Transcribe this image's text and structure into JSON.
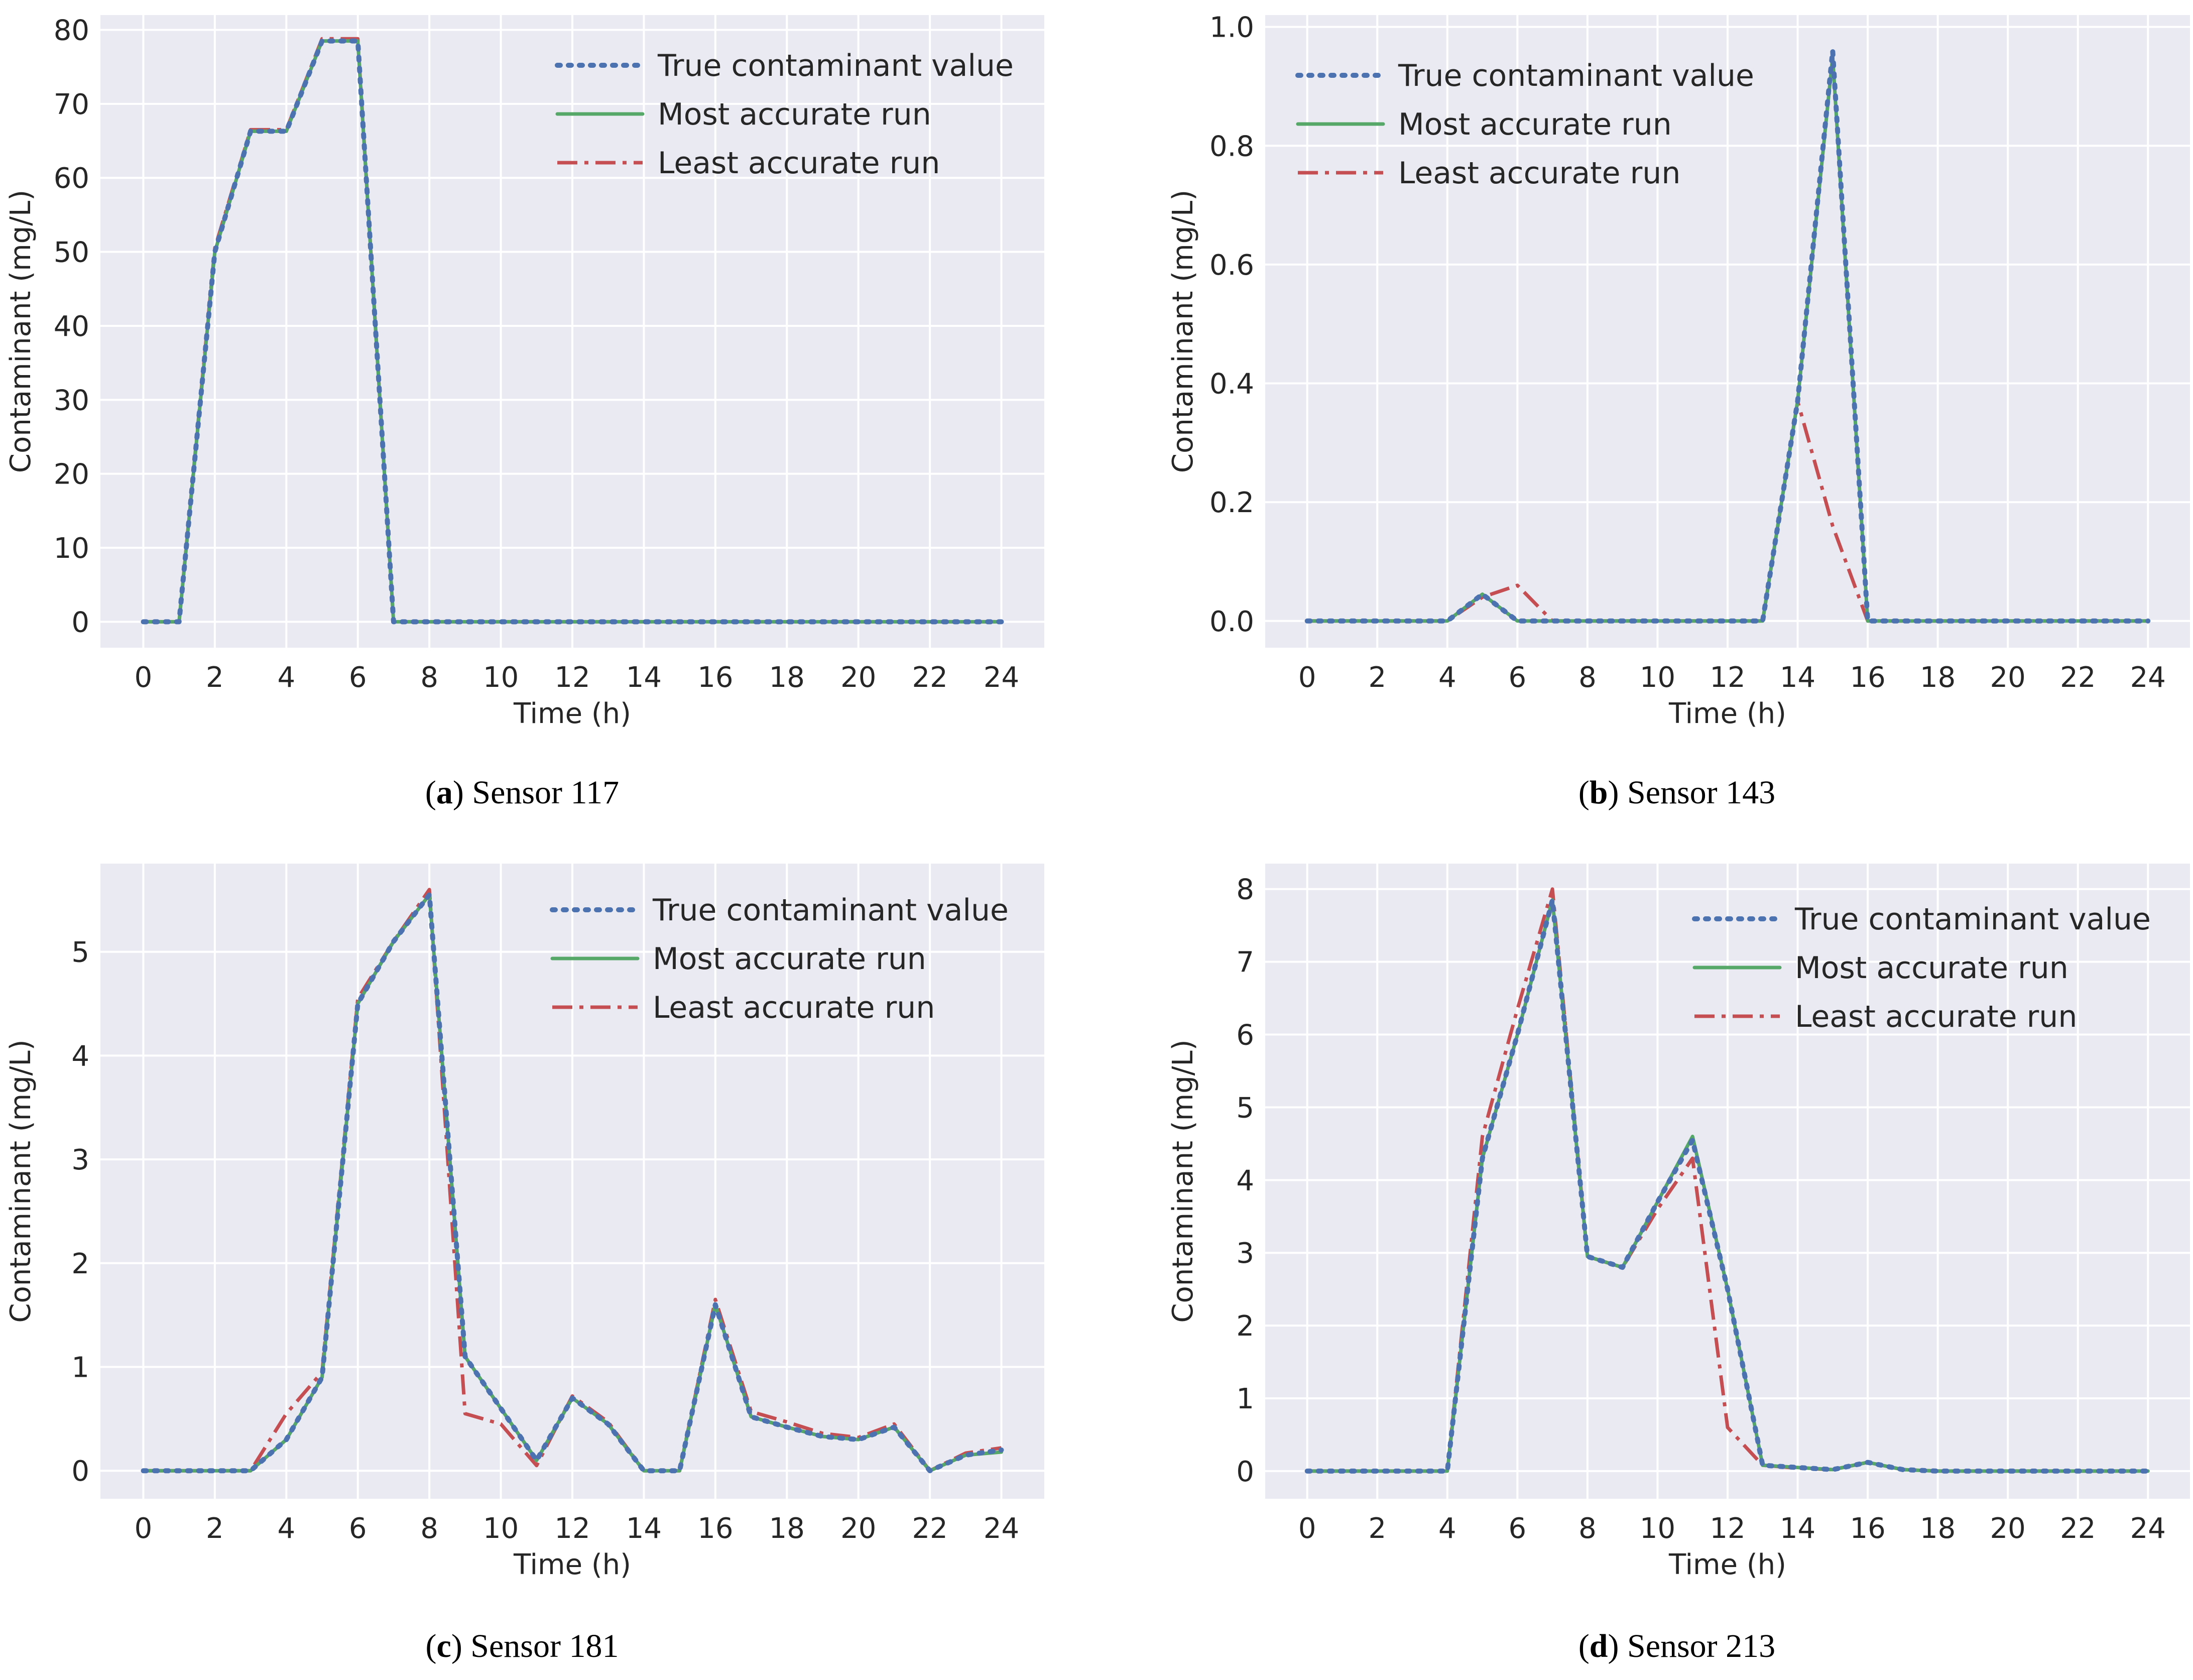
{
  "colors": {
    "true": "#4c72b0",
    "most": "#55a868",
    "least": "#c44e52"
  },
  "chart_data": [
    {
      "type": "line",
      "caption_letter": "a",
      "caption_text": "Sensor 117",
      "xlabel": "Time (h)",
      "ylabel": "Contaminant (mg/L)",
      "xlim": [
        -1.2,
        25.2
      ],
      "ylim": [
        -3.5,
        82
      ],
      "xticks": [
        "0",
        "2",
        "4",
        "6",
        "8",
        "10",
        "12",
        "14",
        "16",
        "18",
        "20",
        "22",
        "24"
      ],
      "yticks": [
        "0",
        "10",
        "20",
        "30",
        "40",
        "50",
        "60",
        "70",
        "80"
      ],
      "legend": "top-right",
      "x": [
        0,
        1,
        2,
        3,
        4,
        5,
        6,
        7,
        8,
        9,
        10,
        11,
        12,
        13,
        14,
        15,
        16,
        17,
        18,
        19,
        20,
        21,
        22,
        23,
        24
      ],
      "series": [
        {
          "name": "True contaminant value",
          "key": "true",
          "values": [
            0,
            0,
            50,
            66.3,
            66.3,
            78.5,
            78.5,
            0,
            0,
            0,
            0,
            0,
            0,
            0,
            0,
            0,
            0,
            0,
            0,
            0,
            0,
            0,
            0,
            0,
            0
          ]
        },
        {
          "name": "Most accurate run",
          "key": "most",
          "values": [
            0,
            0,
            50,
            66.3,
            66.3,
            78.5,
            78.5,
            0,
            0,
            0,
            0,
            0,
            0,
            0,
            0,
            0,
            0,
            0,
            0,
            0,
            0,
            0,
            0,
            0,
            0
          ]
        },
        {
          "name": "Least accurate run",
          "key": "least",
          "values": [
            0,
            0,
            50.5,
            66.5,
            66.5,
            78.8,
            78.8,
            0,
            0,
            0,
            0,
            0,
            0,
            0,
            0,
            0,
            0,
            0,
            0,
            0,
            0,
            0,
            0,
            0,
            0
          ]
        }
      ]
    },
    {
      "type": "line",
      "caption_letter": "b",
      "caption_text": "Sensor 143",
      "xlabel": "Time (h)",
      "ylabel": "Contaminant (mg/L)",
      "xlim": [
        -1.2,
        25.2
      ],
      "ylim": [
        -0.045,
        1.02
      ],
      "xticks": [
        "0",
        "2",
        "4",
        "6",
        "8",
        "10",
        "12",
        "14",
        "16",
        "18",
        "20",
        "22",
        "24"
      ],
      "yticks": [
        "0.0",
        "0.2",
        "0.4",
        "0.6",
        "0.8",
        "1.0"
      ],
      "legend": "top-left",
      "x": [
        0,
        1,
        2,
        3,
        4,
        5,
        6,
        7,
        8,
        9,
        10,
        11,
        12,
        13,
        14,
        15,
        16,
        17,
        18,
        19,
        20,
        21,
        22,
        23,
        24
      ],
      "series": [
        {
          "name": "True contaminant value",
          "key": "true",
          "values": [
            0,
            0,
            0,
            0,
            0,
            0.045,
            0,
            0,
            0,
            0,
            0,
            0,
            0,
            0,
            0.37,
            0.96,
            0,
            0,
            0,
            0,
            0,
            0,
            0,
            0,
            0
          ]
        },
        {
          "name": "Most accurate run",
          "key": "most",
          "values": [
            0,
            0,
            0,
            0,
            0,
            0.045,
            0,
            0,
            0,
            0,
            0,
            0,
            0,
            0,
            0.37,
            0.95,
            0,
            0,
            0,
            0,
            0,
            0,
            0,
            0,
            0
          ]
        },
        {
          "name": "Least accurate run",
          "key": "least",
          "values": [
            0,
            0,
            0,
            0,
            0,
            0.04,
            0.06,
            0,
            0,
            0,
            0,
            0,
            0,
            0,
            0.37,
            0.16,
            0,
            0,
            0,
            0,
            0,
            0,
            0,
            0,
            0
          ]
        }
      ]
    },
    {
      "type": "line",
      "caption_letter": "c",
      "caption_text": "Sensor 181",
      "xlabel": "Time (h)",
      "ylabel": "Contaminant (mg/L)",
      "xlim": [
        -1.2,
        25.2
      ],
      "ylim": [
        -0.27,
        5.85
      ],
      "xticks": [
        "0",
        "2",
        "4",
        "6",
        "8",
        "10",
        "12",
        "14",
        "16",
        "18",
        "20",
        "22",
        "24"
      ],
      "yticks": [
        "0",
        "1",
        "2",
        "3",
        "4",
        "5"
      ],
      "legend": "top-right",
      "x": [
        0,
        1,
        2,
        3,
        4,
        5,
        6,
        7,
        8,
        9,
        10,
        11,
        12,
        13,
        14,
        15,
        16,
        17,
        18,
        19,
        20,
        21,
        22,
        23,
        24
      ],
      "series": [
        {
          "name": "True contaminant value",
          "key": "true",
          "values": [
            0,
            0,
            0,
            0,
            0.3,
            0.9,
            4.5,
            5.1,
            5.55,
            1.1,
            0.6,
            0.1,
            0.7,
            0.45,
            0,
            0,
            1.6,
            0.52,
            0.42,
            0.33,
            0.3,
            0.42,
            0,
            0.15,
            0.2
          ]
        },
        {
          "name": "Most accurate run",
          "key": "most",
          "values": [
            0,
            0,
            0,
            0,
            0.3,
            0.9,
            4.5,
            5.1,
            5.55,
            1.1,
            0.6,
            0.1,
            0.7,
            0.45,
            0,
            0,
            1.6,
            0.52,
            0.42,
            0.33,
            0.3,
            0.42,
            0,
            0.15,
            0.18
          ]
        },
        {
          "name": "Least accurate run",
          "key": "least",
          "values": [
            0,
            0,
            0,
            0,
            0.55,
            0.95,
            4.55,
            5.1,
            5.6,
            0.55,
            0.45,
            0.05,
            0.72,
            0.47,
            0,
            0,
            1.65,
            0.57,
            0.47,
            0.36,
            0.32,
            0.45,
            0,
            0.17,
            0.22
          ]
        }
      ]
    },
    {
      "type": "line",
      "caption_letter": "d",
      "caption_text": "Sensor 213",
      "xlabel": "Time (h)",
      "ylabel": "Contaminant (mg/L)",
      "xlim": [
        -1.2,
        25.2
      ],
      "ylim": [
        -0.38,
        8.35
      ],
      "xticks": [
        "0",
        "2",
        "4",
        "6",
        "8",
        "10",
        "12",
        "14",
        "16",
        "18",
        "20",
        "22",
        "24"
      ],
      "yticks": [
        "0",
        "1",
        "2",
        "3",
        "4",
        "5",
        "6",
        "7",
        "8"
      ],
      "legend": "top-right",
      "x": [
        0,
        1,
        2,
        3,
        4,
        5,
        6,
        7,
        8,
        9,
        10,
        11,
        12,
        13,
        14,
        15,
        16,
        17,
        18,
        19,
        20,
        21,
        22,
        23,
        24
      ],
      "series": [
        {
          "name": "True contaminant value",
          "key": "true",
          "values": [
            0,
            0,
            0,
            0,
            0,
            4.3,
            6.0,
            7.85,
            2.95,
            2.8,
            3.7,
            4.55,
            2.5,
            0.08,
            0.05,
            0.02,
            0.12,
            0.02,
            0,
            0,
            0,
            0,
            0,
            0,
            0
          ]
        },
        {
          "name": "Most accurate run",
          "key": "most",
          "values": [
            0,
            0,
            0,
            0,
            0,
            4.3,
            6.0,
            7.85,
            2.95,
            2.8,
            3.7,
            4.6,
            2.5,
            0.08,
            0.05,
            0.02,
            0.12,
            0.02,
            0,
            0,
            0,
            0,
            0,
            0,
            0
          ]
        },
        {
          "name": "Least accurate run",
          "key": "least",
          "values": [
            0,
            0,
            0,
            0,
            0,
            4.6,
            6.35,
            8.0,
            2.95,
            2.8,
            3.6,
            4.3,
            0.6,
            0.08,
            0.04,
            0.02,
            0.12,
            0.02,
            0,
            0,
            0,
            0,
            0,
            0,
            0
          ]
        }
      ]
    }
  ]
}
